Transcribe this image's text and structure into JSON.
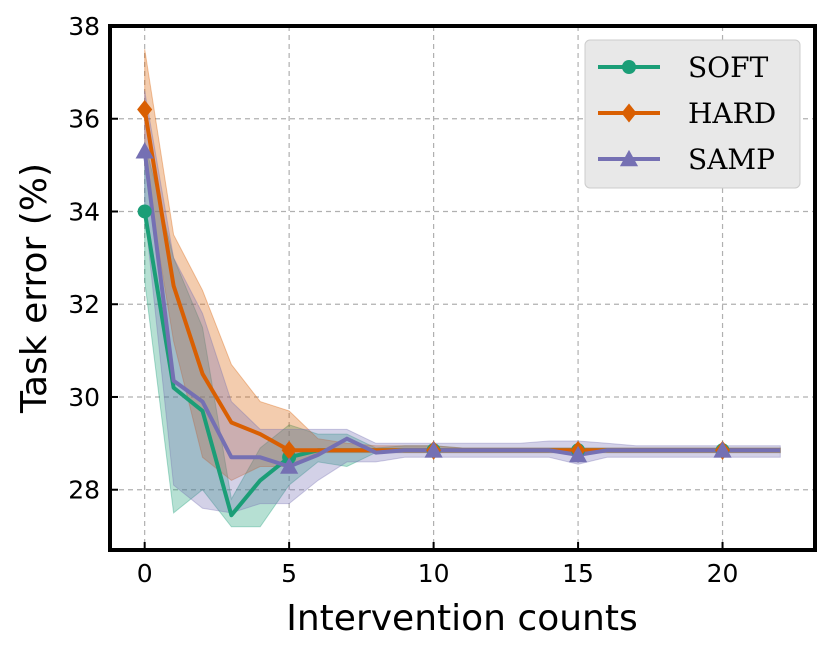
{
  "chart_data": {
    "type": "line",
    "title": "",
    "xlabel": "Intervention counts",
    "ylabel": "Task error (%)",
    "xlim": [
      -1.2,
      23.2
    ],
    "ylim": [
      26.7,
      38
    ],
    "xticks": [
      0,
      5,
      10,
      15,
      20
    ],
    "yticks": [
      28,
      30,
      32,
      34,
      36,
      38
    ],
    "grid": true,
    "legend_position": "top-right",
    "x": [
      0,
      1,
      2,
      3,
      4,
      5,
      6,
      7,
      8,
      9,
      10,
      11,
      12,
      13,
      14,
      15,
      16,
      17,
      18,
      19,
      20,
      21,
      22
    ],
    "marker_x": [
      0,
      5,
      10,
      15,
      20
    ],
    "series": [
      {
        "name": "SOFT",
        "color": "#1b9e77",
        "marker": "circle",
        "values": [
          34.0,
          30.2,
          29.7,
          27.45,
          28.2,
          28.7,
          28.85,
          28.85,
          28.85,
          28.85,
          28.85,
          28.85,
          28.85,
          28.85,
          28.85,
          28.85,
          28.85,
          28.85,
          28.85,
          28.85,
          28.85,
          28.85,
          28.85
        ],
        "lower": [
          32.5,
          27.5,
          28.0,
          27.2,
          27.2,
          28.1,
          28.6,
          28.5,
          28.8,
          28.8,
          28.8,
          28.8,
          28.8,
          28.8,
          28.8,
          28.8,
          28.8,
          28.8,
          28.8,
          28.8,
          28.8,
          28.8,
          28.8
        ],
        "upper": [
          35.5,
          33.0,
          31.5,
          27.8,
          28.9,
          29.4,
          29.2,
          29.2,
          28.9,
          28.95,
          28.95,
          28.9,
          28.9,
          28.9,
          28.9,
          28.9,
          28.9,
          28.9,
          28.9,
          28.9,
          28.9,
          28.9,
          28.9
        ]
      },
      {
        "name": "HARD",
        "color": "#d95f02",
        "marker": "diamond",
        "values": [
          36.2,
          32.4,
          30.5,
          29.45,
          29.2,
          28.85,
          28.85,
          28.85,
          28.85,
          28.85,
          28.85,
          28.85,
          28.85,
          28.85,
          28.85,
          28.85,
          28.85,
          28.85,
          28.85,
          28.85,
          28.85,
          28.85,
          28.85
        ],
        "lower": [
          35.0,
          31.2,
          28.7,
          28.2,
          28.5,
          28.5,
          28.8,
          28.8,
          28.8,
          28.8,
          28.8,
          28.8,
          28.8,
          28.8,
          28.8,
          28.8,
          28.8,
          28.8,
          28.8,
          28.8,
          28.8,
          28.8,
          28.8
        ],
        "upper": [
          37.5,
          33.5,
          32.3,
          30.7,
          29.9,
          29.7,
          29.1,
          29.0,
          28.95,
          28.95,
          28.95,
          28.9,
          28.9,
          28.9,
          28.9,
          28.9,
          28.9,
          28.9,
          28.9,
          28.9,
          28.9,
          28.9,
          28.9
        ]
      },
      {
        "name": "SAMP",
        "color": "#7570b3",
        "marker": "triangle",
        "values": [
          35.3,
          30.35,
          29.9,
          28.7,
          28.7,
          28.5,
          28.75,
          29.1,
          28.8,
          28.85,
          28.85,
          28.85,
          28.85,
          28.85,
          28.85,
          28.75,
          28.85,
          28.85,
          28.85,
          28.85,
          28.85,
          28.85,
          28.85
        ],
        "lower": [
          34.0,
          28.1,
          27.6,
          27.5,
          27.7,
          27.7,
          28.2,
          28.6,
          28.6,
          28.7,
          28.7,
          28.7,
          28.7,
          28.7,
          28.7,
          28.55,
          28.7,
          28.7,
          28.7,
          28.7,
          28.7,
          28.7,
          28.7
        ],
        "upper": [
          36.6,
          33.0,
          31.8,
          29.9,
          29.3,
          29.3,
          29.3,
          29.3,
          29.0,
          29.0,
          29.0,
          29.0,
          29.0,
          29.0,
          29.05,
          29.05,
          29.0,
          28.95,
          28.95,
          28.95,
          28.95,
          28.95,
          28.95
        ]
      }
    ]
  }
}
